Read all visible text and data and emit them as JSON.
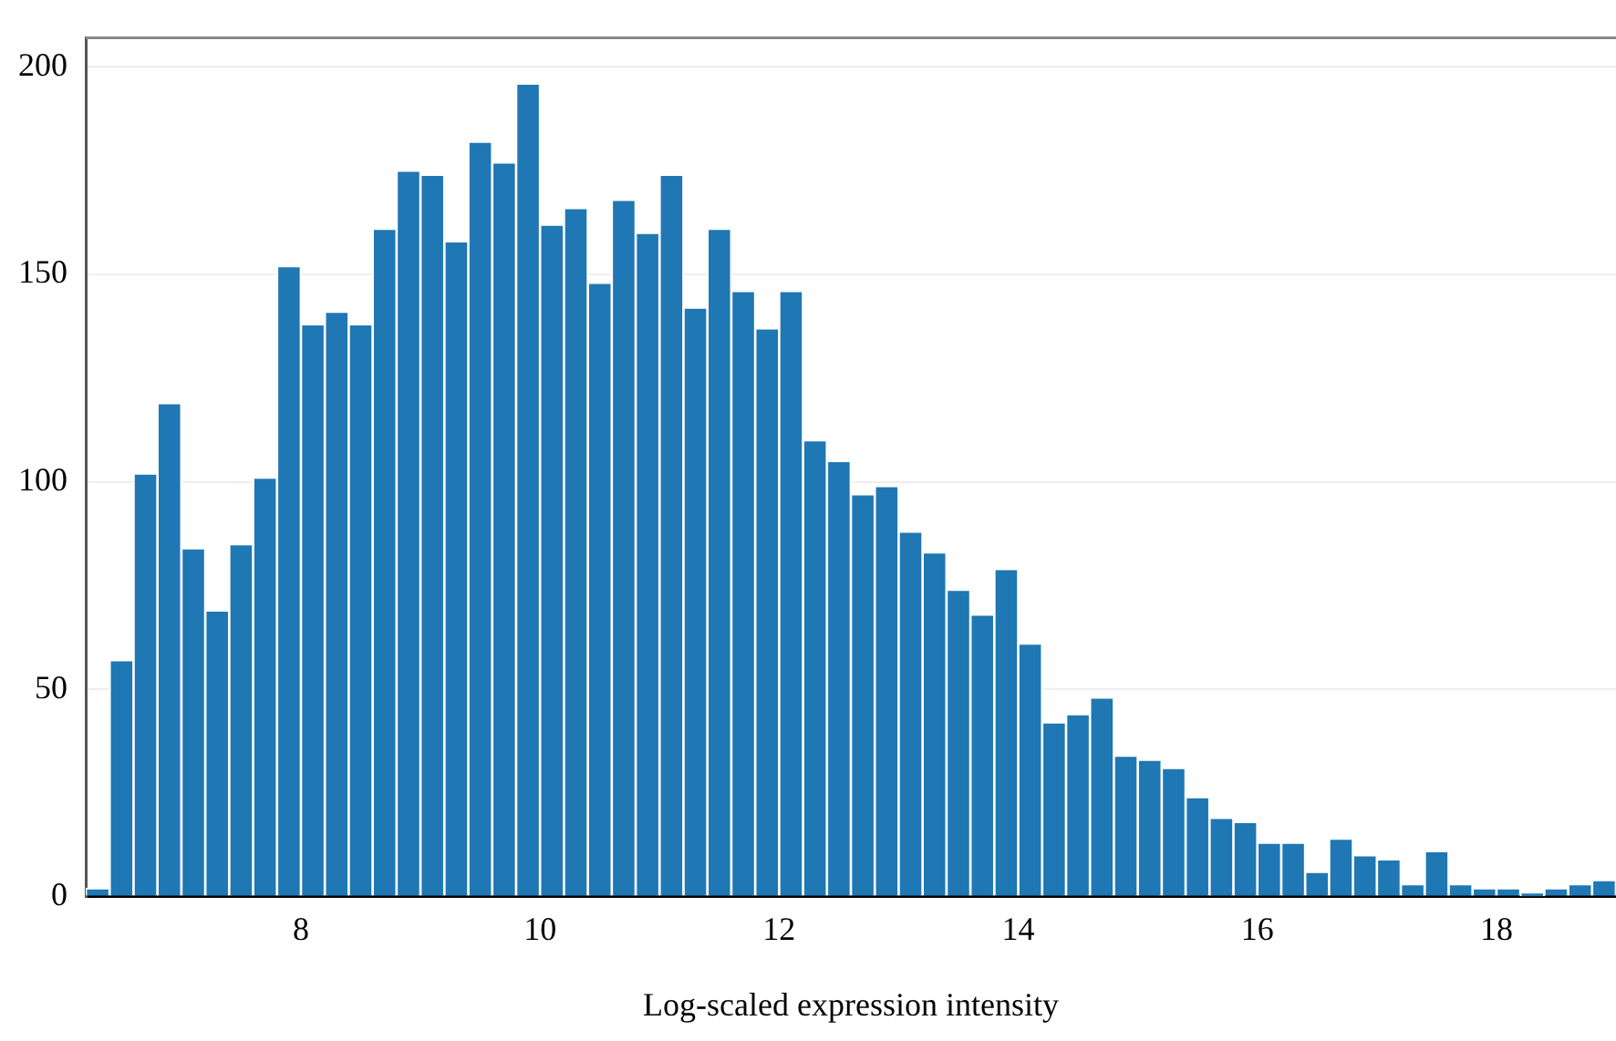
{
  "chart_data": {
    "type": "histogram",
    "xlabel": "Log-scaled expression intensity",
    "bins": [
      6.2,
      6.4,
      6.6,
      6.8,
      7.0,
      7.2,
      7.4,
      7.6,
      7.8,
      8.0,
      8.2,
      8.4,
      8.6,
      8.8,
      9.0,
      9.2,
      9.4,
      9.6,
      9.8,
      10.0,
      10.2,
      10.4,
      10.6,
      10.8,
      11.0,
      11.2,
      11.4,
      11.6,
      11.8,
      12.0,
      12.2,
      12.4,
      12.6,
      12.8,
      13.0,
      13.2,
      13.4,
      13.6,
      13.8,
      14.0,
      14.2,
      14.4,
      14.6,
      14.8,
      15.0,
      15.2,
      15.4,
      15.6,
      15.8,
      16.0,
      16.2,
      16.4,
      16.6,
      16.8,
      17.0,
      17.2,
      17.4,
      17.6,
      17.8,
      18.0,
      18.2,
      18.4,
      18.6,
      18.8,
      19.0
    ],
    "values": [
      2,
      57,
      102,
      119,
      84,
      69,
      85,
      101,
      152,
      138,
      141,
      138,
      161,
      175,
      174,
      158,
      182,
      177,
      196,
      162,
      166,
      148,
      168,
      160,
      174,
      142,
      161,
      146,
      137,
      146,
      110,
      105,
      97,
      99,
      88,
      83,
      74,
      68,
      79,
      61,
      42,
      44,
      48,
      34,
      33,
      31,
      24,
      19,
      18,
      13,
      13,
      6,
      14,
      10,
      9,
      3,
      11,
      3,
      2,
      2,
      1,
      2,
      3,
      4
    ],
    "color": "#1f77b4",
    "xlim": [
      6.2,
      19.0
    ],
    "xticks": [
      8,
      10,
      12,
      14,
      16,
      18
    ],
    "ylim": [
      0,
      207
    ],
    "yticks": [
      0,
      50,
      100,
      150,
      200
    ],
    "grid": "y"
  }
}
